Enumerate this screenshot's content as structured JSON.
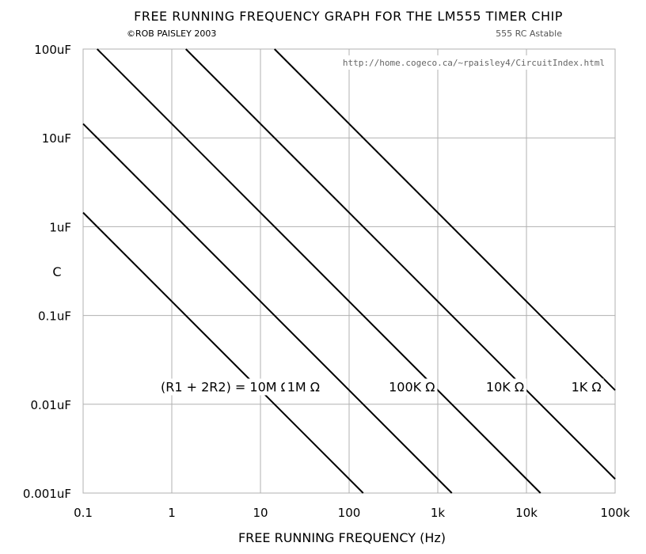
{
  "chart_data": {
    "type": "line",
    "title": "FREE RUNNING FREQUENCY GRAPH FOR THE LM555 TIMER CHIP",
    "credit": "©ROB PAISLEY 2003",
    "subtitle": "555 RC Astable",
    "url": "http://home.cogeco.ca/~rpaisley4/CircuitIndex.html",
    "xlabel": "FREE RUNNING FREQUENCY  (Hz)",
    "ylabel": "C",
    "x_scale": "log",
    "y_scale": "log",
    "xlim": [
      0.1,
      100000
    ],
    "ylim": [
      0.001,
      100
    ],
    "grid": true,
    "x_ticks": [
      {
        "value": 0.1,
        "label": "0.1"
      },
      {
        "value": 1,
        "label": "1"
      },
      {
        "value": 10,
        "label": "10"
      },
      {
        "value": 100,
        "label": "100"
      },
      {
        "value": 1000,
        "label": "1k"
      },
      {
        "value": 10000,
        "label": "10k"
      },
      {
        "value": 100000,
        "label": "100k"
      }
    ],
    "y_ticks": [
      {
        "value": 100,
        "label": "100uF"
      },
      {
        "value": 10,
        "label": "10uF"
      },
      {
        "value": 1,
        "label": "1uF"
      },
      {
        "value": 0.1,
        "label": "0.1uF"
      },
      {
        "value": 0.01,
        "label": "0.01uF"
      },
      {
        "value": 0.001,
        "label": "0.001uF"
      }
    ],
    "series_label_y": 0.0155,
    "series": [
      {
        "name": "(R1 + 2R2) = 10M Ω",
        "k": 0.144,
        "label_x": 0.75
      },
      {
        "name": "1M Ω",
        "k": 1.44,
        "label_x": 20
      },
      {
        "name": "100K Ω",
        "k": 14.4,
        "label_x": 280
      },
      {
        "name": "10K Ω",
        "k": 144,
        "label_x": 3500
      },
      {
        "name": "1K Ω",
        "k": 1440,
        "label_x": 32000
      }
    ]
  }
}
